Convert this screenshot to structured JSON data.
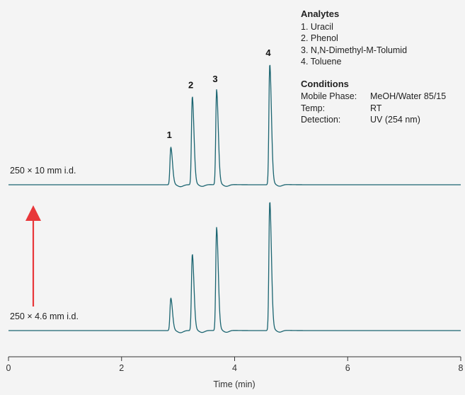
{
  "chart_data": {
    "type": "line",
    "xlabel": "Time (min)",
    "xlim": [
      0,
      8
    ],
    "xticks": [
      0,
      2,
      4,
      6,
      8
    ],
    "grid": false,
    "colors": {
      "trace": "#1a6470",
      "arrow": "#e8373a",
      "axis": "#333333"
    },
    "series": [
      {
        "name": "250 × 10 mm i.d.",
        "peaks": [
          {
            "label": "1",
            "time": 2.87,
            "height": 0.31
          },
          {
            "label": "2",
            "time": 3.25,
            "height": 0.73
          },
          {
            "label": "3",
            "time": 3.68,
            "height": 0.78
          },
          {
            "label": "4",
            "time": 4.62,
            "height": 1.0
          }
        ]
      },
      {
        "name": "250 × 4.6 mm i.d.",
        "peaks": [
          {
            "time": 2.87,
            "height": 0.25
          },
          {
            "time": 3.25,
            "height": 0.59
          },
          {
            "time": 3.68,
            "height": 0.79
          },
          {
            "time": 4.62,
            "height": 1.0
          }
        ]
      }
    ]
  },
  "legend": {
    "analytes_title": "Analytes",
    "analytes": [
      "1. Uracil",
      "2. Phenol",
      "3. N,N-Dimethyl-M-Tolumid",
      "4. Toluene"
    ],
    "conditions_title": "Conditions",
    "conditions": [
      {
        "key": "Mobile Phase:",
        "value": "MeOH/Water 85/15"
      },
      {
        "key": "Temp:",
        "value": "RT"
      },
      {
        "key": "Detection:",
        "value": "UV (254 nm)"
      }
    ]
  }
}
